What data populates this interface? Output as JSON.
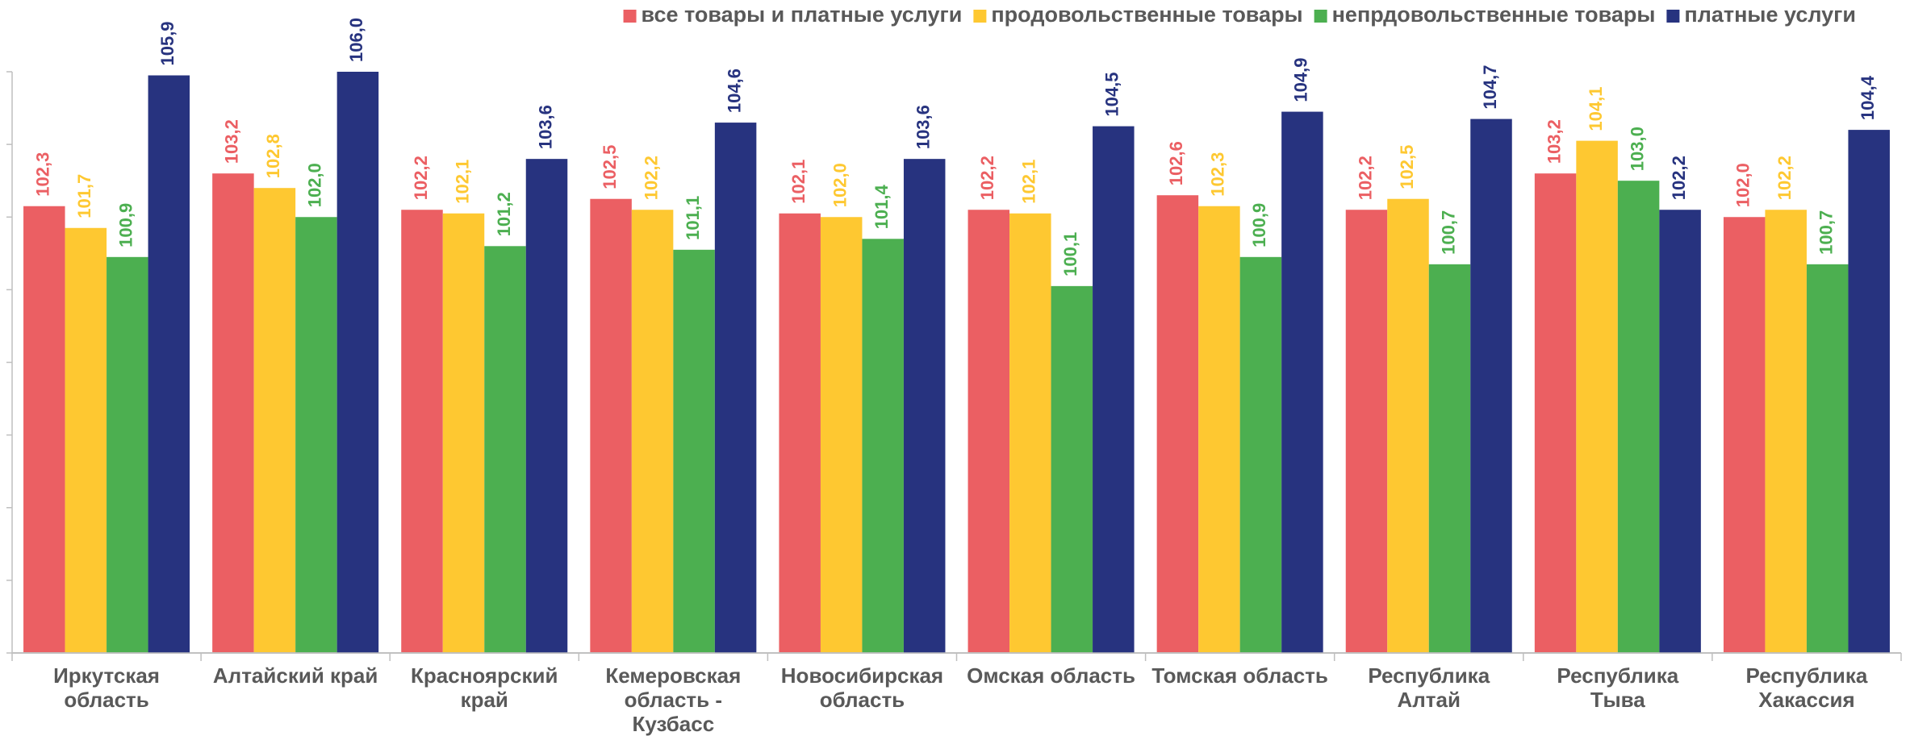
{
  "chart_data": {
    "type": "bar",
    "categories": [
      "Иркутская\nобласть",
      "Алтайский край",
      "Красноярский\nкрай",
      "Кемеровская\nобласть -\nКузбасс",
      "Новосибирская\nобласть",
      "Омская область",
      "Томская область",
      "Республика\nАлтай",
      "Республика\nТыва",
      "Республика\nХакассия"
    ],
    "series": [
      {
        "name": "все товары и платные услуги",
        "color": "#eb5f63",
        "values": [
          102.3,
          103.2,
          102.2,
          102.5,
          102.1,
          102.2,
          102.6,
          102.2,
          103.2,
          102.0
        ],
        "value_labels": [
          "102,3",
          "103,2",
          "102,2",
          "102,5",
          "102,1",
          "102,2",
          "102,6",
          "102,2",
          "103,2",
          "102,0"
        ]
      },
      {
        "name": "продовольственные товары",
        "color": "#fec831",
        "values": [
          101.7,
          102.8,
          102.1,
          102.2,
          102.0,
          102.1,
          102.3,
          102.5,
          104.1,
          102.2
        ],
        "value_labels": [
          "101,7",
          "102,8",
          "102,1",
          "102,2",
          "102,0",
          "102,1",
          "102,3",
          "102,5",
          "104,1",
          "102,2"
        ]
      },
      {
        "name": "непрдовольственные товары",
        "color": "#4caf50",
        "values": [
          100.9,
          102.0,
          101.2,
          101.1,
          101.4,
          100.1,
          100.9,
          100.7,
          103.0,
          100.7
        ],
        "value_labels": [
          "100,9",
          "102,0",
          "101,2",
          "101,1",
          "101,4",
          "100,1",
          "100,9",
          "100,7",
          "103,0",
          "100,7"
        ]
      },
      {
        "name": "платные услуги",
        "color": "#27337f",
        "values": [
          105.9,
          106.0,
          103.6,
          104.6,
          103.6,
          104.5,
          104.9,
          104.7,
          102.2,
          104.4
        ],
        "value_labels": [
          "105,9",
          "106,0",
          "103,6",
          "104,6",
          "103,6",
          "104,5",
          "104,9",
          "104,7",
          "102,2",
          "104,4"
        ]
      }
    ],
    "ylim": [
      90,
      106
    ],
    "yticks": [
      90,
      92,
      94,
      96,
      98,
      100,
      102,
      104,
      106
    ],
    "legend": "top-right"
  }
}
